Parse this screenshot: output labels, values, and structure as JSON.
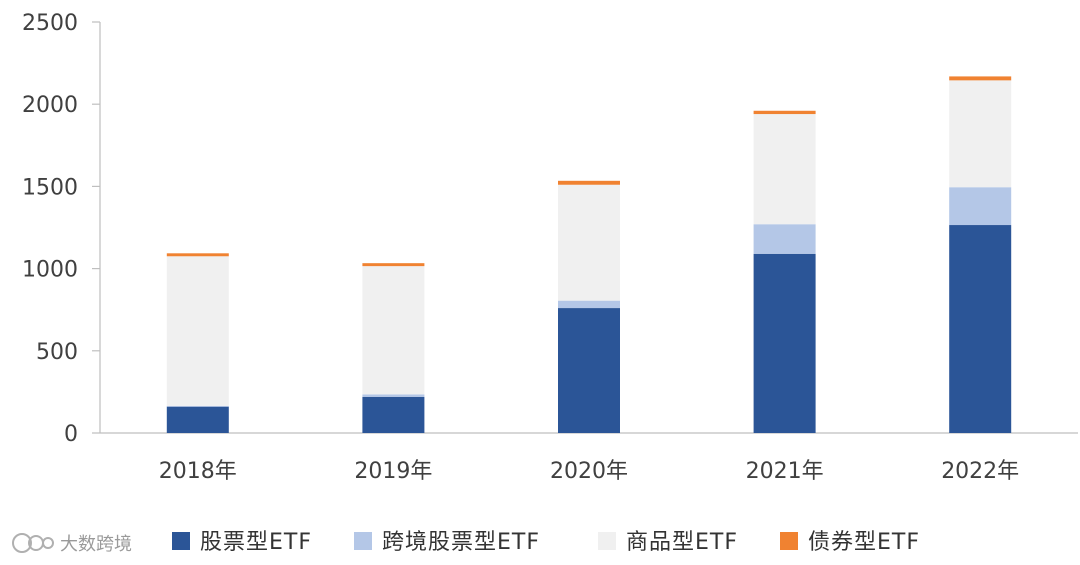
{
  "chart_data": {
    "type": "bar",
    "stacked": true,
    "categories": [
      "2018年",
      "2019年",
      "2020年",
      "2021年",
      "2022年"
    ],
    "series": [
      {
        "name": "股票型ETF",
        "color": "#2B5597",
        "values": [
          160,
          220,
          760,
          1090,
          1265
        ]
      },
      {
        "name": "跨境股票型ETF",
        "color": "#B4C7E7",
        "values": [
          5,
          15,
          45,
          180,
          230
        ]
      },
      {
        "name": "商品型ETF",
        "color": "#F0F0F0",
        "values": [
          910,
          780,
          705,
          670,
          650
        ]
      },
      {
        "name": "债券型ETF",
        "color": "#F08231",
        "values": [
          18,
          18,
          24,
          20,
          24
        ]
      }
    ],
    "ylim": [
      0,
      2500
    ],
    "yticks": [
      0,
      500,
      1000,
      1500,
      2000,
      2500
    ],
    "grid": false,
    "legend_position": "bottom"
  },
  "watermark": "大数跨境"
}
